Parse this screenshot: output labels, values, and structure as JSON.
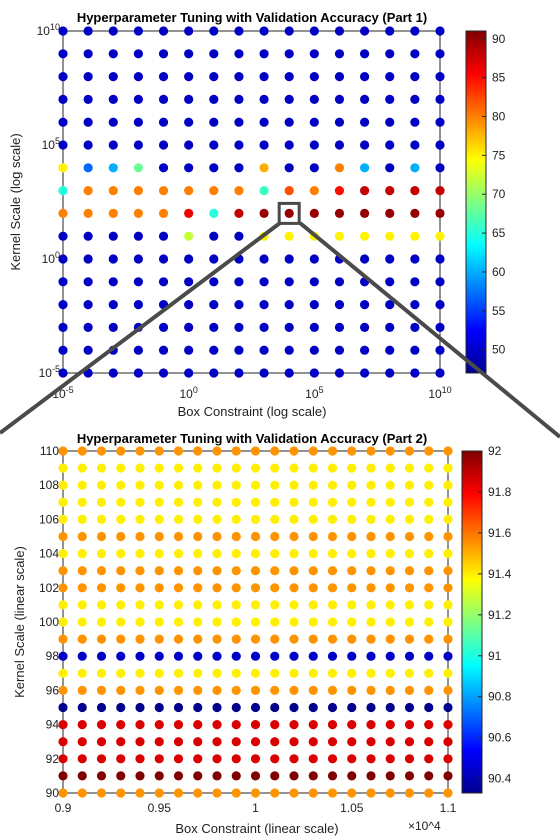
{
  "chart_data": [
    {
      "type": "scatter",
      "title": "Hyperparameter Tuning with Validation Accuracy (Part 1)",
      "xlabel": "Box Constraint (log scale)",
      "ylabel": "Kernel Scale (log scale)",
      "x_scale": "log",
      "y_scale": "log",
      "xlim": [
        1e-05,
        10000000000.0
      ],
      "ylim": [
        1e-05,
        10000000000.0
      ],
      "x_ticks": [
        "10^-5",
        "10^0",
        "10^5",
        "10^10"
      ],
      "y_ticks": [
        "10^-5",
        "10^0",
        "10^5",
        "10^10"
      ],
      "grid_exponents": [
        -5,
        -4,
        -3,
        -2,
        -1,
        0,
        1,
        2,
        3,
        4,
        5,
        6,
        7,
        8,
        9,
        10
      ],
      "default_value": 50,
      "special_rows": [
        {
          "y_exp": 4,
          "values": [
            75,
            57,
            60,
            68,
            50,
            50,
            50,
            50,
            78,
            50,
            50,
            80,
            60,
            50,
            60,
            50
          ]
        },
        {
          "y_exp": 3,
          "values": [
            65,
            80,
            80,
            80,
            80,
            80,
            80,
            80,
            66,
            82,
            80,
            85,
            88,
            88,
            88,
            88
          ]
        },
        {
          "y_exp": 2,
          "values": [
            80,
            80,
            80,
            80,
            80,
            86,
            65,
            88,
            90,
            90,
            90,
            90,
            90,
            90,
            90,
            90
          ]
        },
        {
          "y_exp": 1,
          "values": [
            50,
            50,
            50,
            50,
            50,
            72,
            50,
            50,
            75,
            75,
            75,
            75,
            75,
            75,
            75,
            75
          ]
        }
      ],
      "colorbar": {
        "min": 47,
        "max": 91,
        "ticks": [
          50,
          55,
          60,
          65,
          70,
          75,
          80,
          85,
          90
        ]
      },
      "zoom_box": {
        "x_exp": 4,
        "y_exp": 2
      }
    },
    {
      "type": "scatter",
      "title": "Hyperparameter Tuning with Validation Accuracy (Part 2)",
      "xlabel": "Box Constraint (linear scale)",
      "ylabel": "Kernel Scale (linear scale)",
      "x_multiplier": "×10^4",
      "xlim": [
        0.9,
        1.1
      ],
      "ylim": [
        90,
        110
      ],
      "x_ticks": [
        0.9,
        0.95,
        1,
        1.05,
        1.1
      ],
      "y_ticks": [
        90,
        92,
        94,
        96,
        98,
        100,
        102,
        104,
        106,
        108,
        110
      ],
      "x_count": 21,
      "y_values": [
        90,
        91,
        92,
        93,
        94,
        95,
        96,
        97,
        98,
        99,
        100,
        101,
        102,
        103,
        104,
        105,
        106,
        107,
        108,
        109,
        110
      ],
      "row_values": [
        91.55,
        92.0,
        91.85,
        91.85,
        91.85,
        90.35,
        91.55,
        91.4,
        90.45,
        91.55,
        91.4,
        91.4,
        91.55,
        91.55,
        91.4,
        91.55,
        91.4,
        91.4,
        91.4,
        91.4,
        91.55
      ],
      "colorbar": {
        "min": 90.33,
        "max": 92.0,
        "ticks": [
          90.4,
          90.6,
          90.8,
          91,
          91.2,
          91.4,
          91.6,
          91.8,
          92
        ]
      }
    }
  ]
}
